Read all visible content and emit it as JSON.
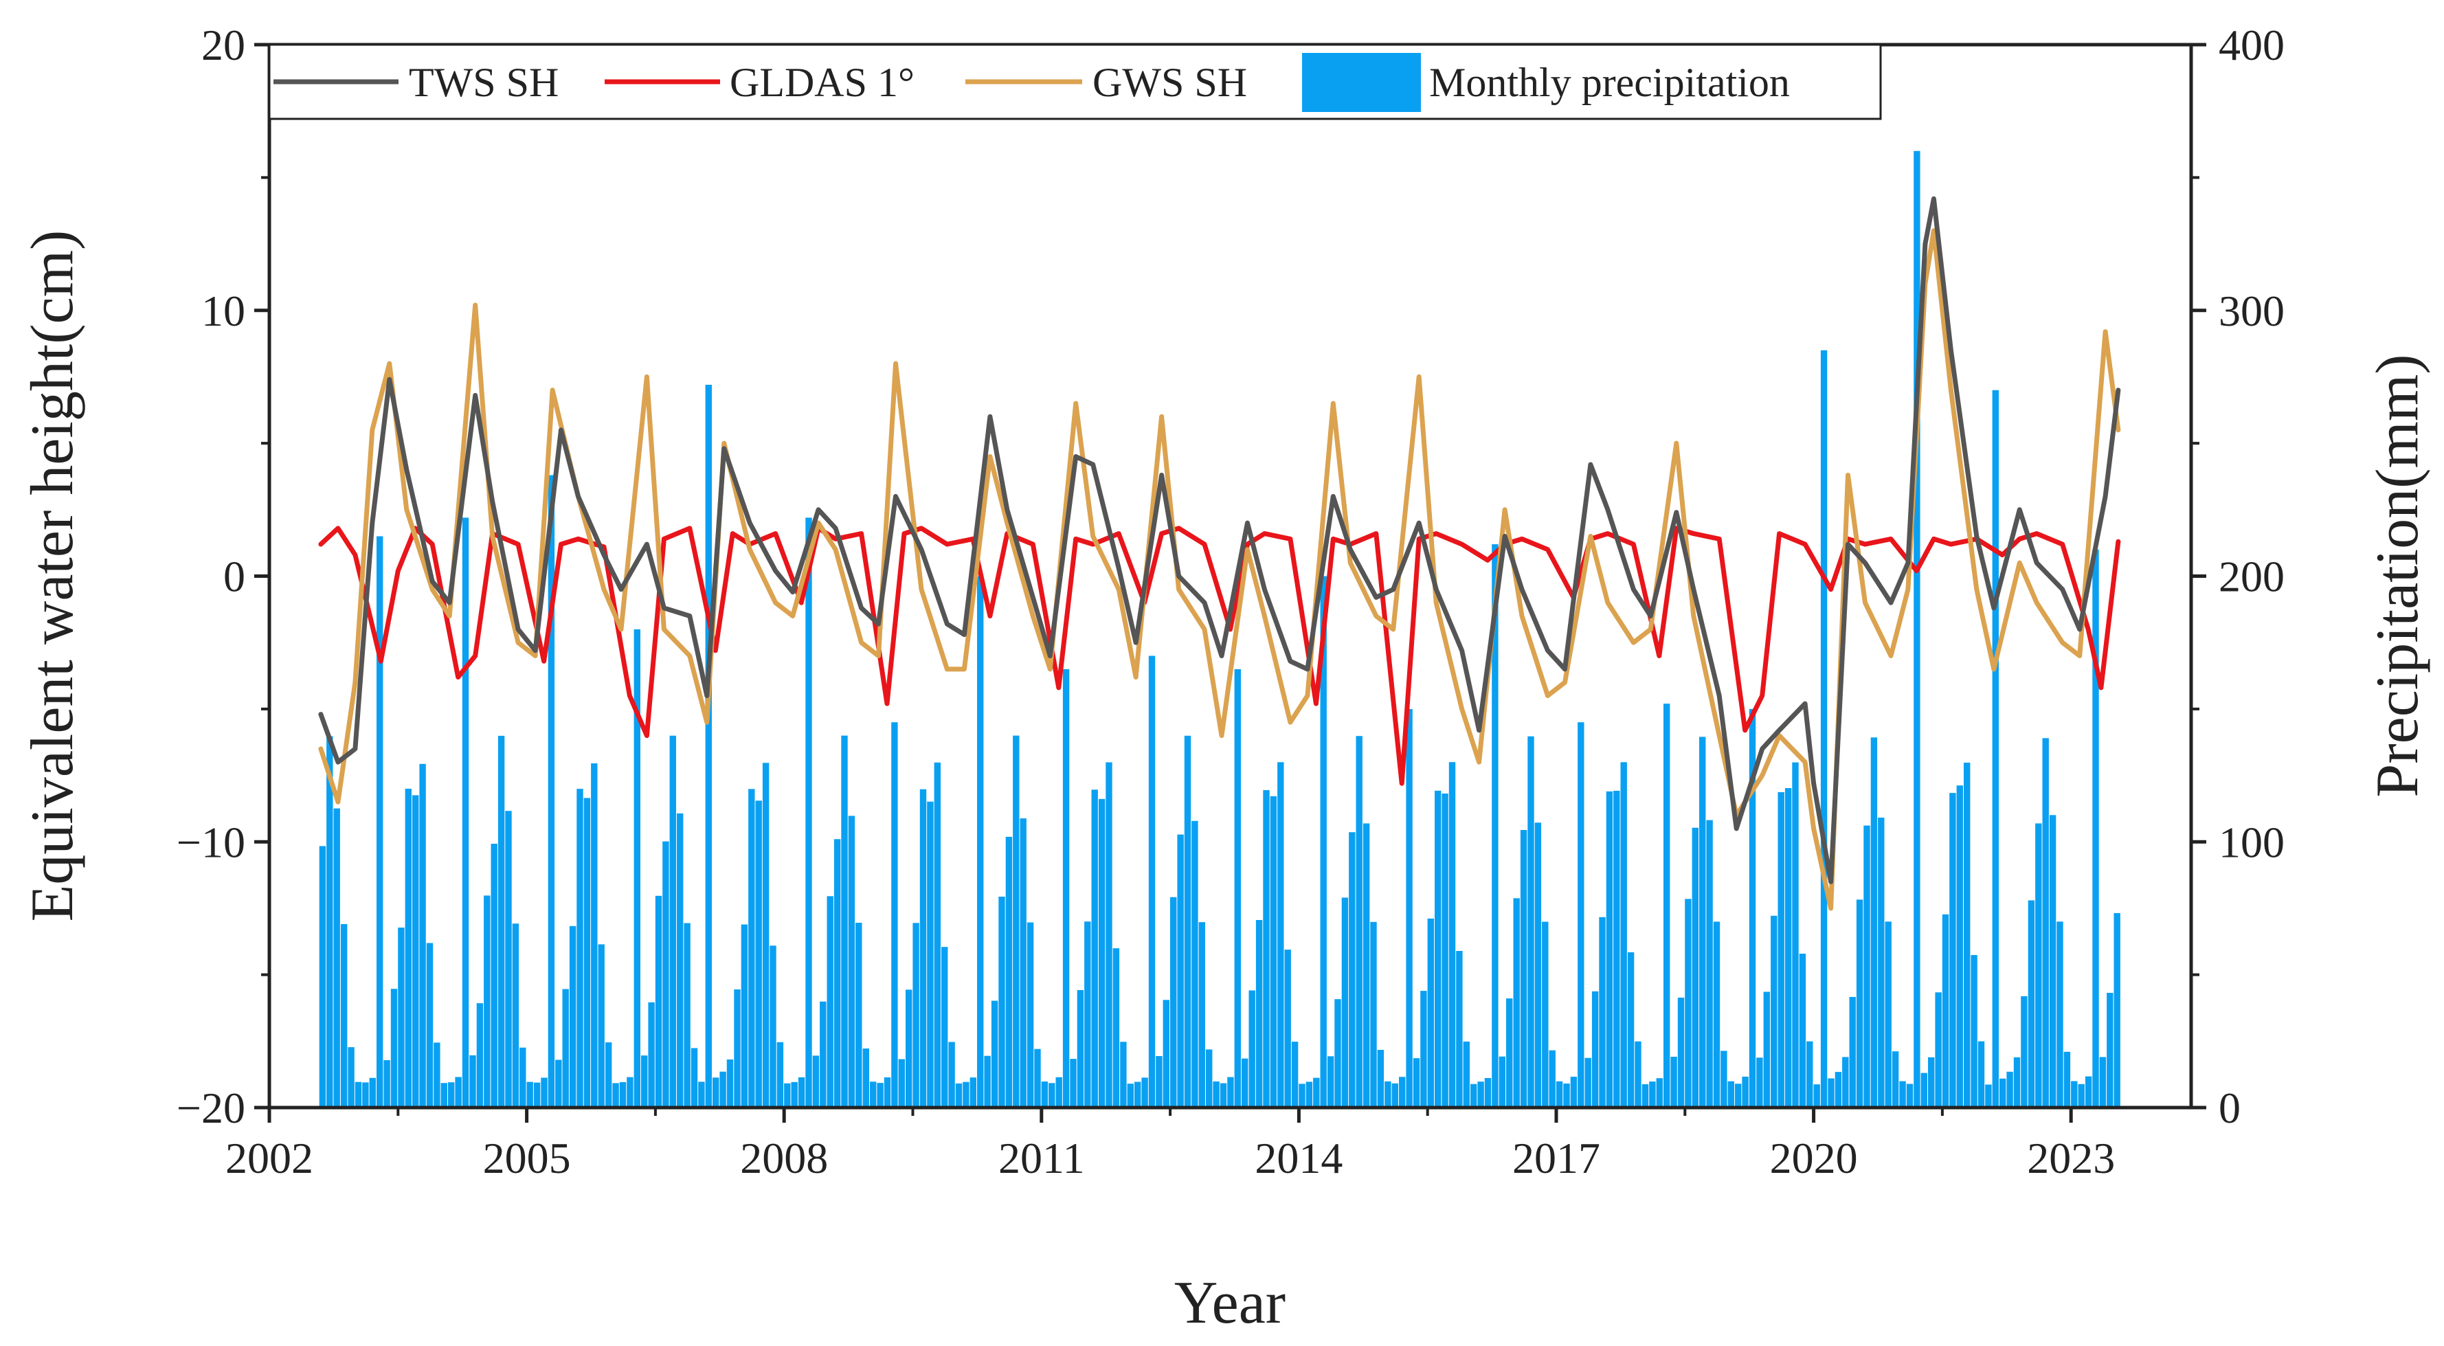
{
  "chart_data": {
    "type": "line+bar",
    "title": "",
    "xlabel": "Year",
    "ylabel_left": "Equivalent water height(cm)",
    "ylabel_right": "Precipitation(mm)",
    "xlim": [
      2002,
      2024.4
    ],
    "ylim_left": [
      -20,
      20
    ],
    "ylim_right": [
      0,
      400
    ],
    "x_ticks": [
      2002,
      2005,
      2008,
      2011,
      2014,
      2017,
      2020,
      2023
    ],
    "x_tick_labels": [
      "2002",
      "2005",
      "2008",
      "2011",
      "2014",
      "2017",
      "2020",
      "2023"
    ],
    "y_left_ticks": [
      20,
      10,
      0,
      -10,
      -20
    ],
    "y_left_tick_labels": [
      "20",
      "10",
      "0",
      "−10",
      "−20"
    ],
    "y_right_ticks": [
      400,
      300,
      200,
      100,
      0
    ],
    "y_right_tick_labels": [
      "400",
      "300",
      "200",
      "100",
      "0"
    ],
    "grid": false,
    "legend_position": "top",
    "legend": [
      {
        "id": "tws",
        "label": "TWS SH",
        "color": "#555555",
        "kind": "line"
      },
      {
        "id": "gldas",
        "label": "GLDAS 1°",
        "color": "#e8151b",
        "kind": "line"
      },
      {
        "id": "gws",
        "label": "GWS SH",
        "color": "#dba24f",
        "kind": "line"
      },
      {
        "id": "precip",
        "label": "Monthly precipitation",
        "color": "#0aa0f2",
        "kind": "bar"
      }
    ],
    "precip_spec": {
      "start_year": 2002.62,
      "end_year": 2023.55,
      "months_per_year": 12,
      "annual_base_mm": [
        10,
        10,
        12,
        14,
        20,
        45,
        80,
        120,
        140,
        130,
        70,
        25
      ],
      "annual_peaks_mm": [
        2003.3,
        215,
        2004.3,
        222,
        2005.3,
        238,
        2006.3,
        180,
        2007.1,
        272,
        2008.3,
        222,
        2009.3,
        145,
        2010.3,
        200,
        2011.3,
        165,
        2012.3,
        170,
        2013.3,
        165,
        2014.3,
        200,
        2015.3,
        150,
        2016.3,
        212,
        2017.3,
        145,
        2018.3,
        152,
        2019.3,
        150,
        2020.1,
        285,
        2021.2,
        360,
        2022.1,
        270,
        2023.3,
        210
      ]
    },
    "series": [
      {
        "id": "gldas",
        "name": "GLDAS 1°",
        "color": "#e8151b",
        "x": [
          2002.6,
          2002.8,
          2003.0,
          2003.3,
          2003.5,
          2003.7,
          2003.9,
          2004.2,
          2004.4,
          2004.6,
          2004.9,
          2005.2,
          2005.4,
          2005.6,
          2005.9,
          2006.2,
          2006.4,
          2006.6,
          2006.9,
          2007.2,
          2007.4,
          2007.6,
          2007.9,
          2008.2,
          2008.4,
          2008.6,
          2008.9,
          2009.2,
          2009.4,
          2009.6,
          2009.9,
          2010.2,
          2010.4,
          2010.6,
          2010.9,
          2011.2,
          2011.4,
          2011.6,
          2011.9,
          2012.2,
          2012.4,
          2012.6,
          2012.9,
          2013.2,
          2013.4,
          2013.6,
          2013.9,
          2014.2,
          2014.4,
          2014.6,
          2014.9,
          2015.2,
          2015.4,
          2015.6,
          2015.9,
          2016.2,
          2016.4,
          2016.6,
          2016.9,
          2017.2,
          2017.4,
          2017.6,
          2017.9,
          2018.2,
          2018.4,
          2018.6,
          2018.9,
          2019.2,
          2019.4,
          2019.6,
          2019.9,
          2020.2,
          2020.4,
          2020.6,
          2020.9,
          2021.2,
          2021.4,
          2021.6,
          2021.9,
          2022.2,
          2022.4,
          2022.6,
          2022.9,
          2023.2,
          2023.35,
          2023.55
        ],
        "y": [
          1.2,
          1.8,
          0.8,
          -3.2,
          0.2,
          1.8,
          1.2,
          -3.8,
          -3.0,
          1.6,
          1.2,
          -3.2,
          1.2,
          1.4,
          1.1,
          -4.5,
          -6.0,
          1.4,
          1.8,
          -2.8,
          1.6,
          1.2,
          1.6,
          -1.0,
          1.8,
          1.4,
          1.6,
          -4.8,
          1.6,
          1.8,
          1.2,
          1.4,
          -1.5,
          1.6,
          1.2,
          -4.2,
          1.4,
          1.2,
          1.6,
          -1.0,
          1.6,
          1.8,
          1.2,
          -2.0,
          1.2,
          1.6,
          1.4,
          -4.8,
          1.4,
          1.2,
          1.6,
          -7.8,
          1.4,
          1.6,
          1.2,
          0.6,
          1.2,
          1.4,
          1.0,
          -0.8,
          1.4,
          1.6,
          1.2,
          -3.0,
          1.8,
          1.6,
          1.4,
          -5.8,
          -4.5,
          1.6,
          1.2,
          -0.5,
          1.4,
          1.2,
          1.4,
          0.2,
          1.4,
          1.2,
          1.4,
          0.8,
          1.4,
          1.6,
          1.2,
          -2.0,
          -4.2,
          1.3
        ]
      },
      {
        "id": "tws",
        "name": "TWS SH",
        "color": "#555555",
        "x": [
          2002.6,
          2002.8,
          2003.0,
          2003.2,
          2003.4,
          2003.6,
          2003.9,
          2004.1,
          2004.4,
          2004.6,
          2004.9,
          2005.1,
          2005.4,
          2005.6,
          2005.9,
          2006.1,
          2006.4,
          2006.6,
          2006.9,
          2007.1,
          2007.3,
          2007.6,
          2007.9,
          2008.1,
          2008.4,
          2008.6,
          2008.9,
          2009.1,
          2009.3,
          2009.6,
          2009.9,
          2010.1,
          2010.4,
          2010.6,
          2010.9,
          2011.1,
          2011.4,
          2011.6,
          2011.9,
          2012.1,
          2012.4,
          2012.6,
          2012.9,
          2013.1,
          2013.4,
          2013.6,
          2013.9,
          2014.1,
          2014.4,
          2014.6,
          2014.9,
          2015.1,
          2015.4,
          2015.6,
          2015.9,
          2016.1,
          2016.4,
          2016.6,
          2016.9,
          2017.1,
          2017.4,
          2017.6,
          2017.9,
          2018.1,
          2018.4,
          2018.6,
          2018.9,
          2019.1,
          2019.4,
          2019.6,
          2019.9,
          2020.0,
          2020.2,
          2020.4,
          2020.6,
          2020.9,
          2021.1,
          2021.3,
          2021.4,
          2021.6,
          2021.9,
          2022.1,
          2022.4,
          2022.6,
          2022.9,
          2023.1,
          2023.4,
          2023.55
        ],
        "y": [
          -5.2,
          -7.0,
          -6.5,
          2.0,
          7.4,
          4.0,
          -0.2,
          -1.0,
          6.8,
          2.8,
          -2.0,
          -2.8,
          5.5,
          3.0,
          0.8,
          -0.5,
          1.2,
          -1.2,
          -1.5,
          -4.5,
          4.8,
          2.0,
          0.2,
          -0.6,
          2.5,
          1.8,
          -1.2,
          -1.8,
          3.0,
          1.0,
          -1.8,
          -2.2,
          6.0,
          2.5,
          -0.8,
          -3.0,
          4.5,
          4.2,
          0.3,
          -2.5,
          3.8,
          0.0,
          -1.0,
          -3.0,
          2.0,
          -0.5,
          -3.2,
          -3.5,
          3.0,
          1.0,
          -0.8,
          -0.5,
          2.0,
          -0.5,
          -2.8,
          -5.8,
          1.5,
          -0.5,
          -2.8,
          -3.5,
          4.2,
          2.5,
          -0.5,
          -1.5,
          2.4,
          -0.5,
          -4.5,
          -9.5,
          -6.5,
          -5.8,
          -4.8,
          -7.8,
          -11.5,
          1.2,
          0.5,
          -1.0,
          0.5,
          12.5,
          14.2,
          8.5,
          1.5,
          -1.2,
          2.5,
          0.5,
          -0.5,
          -2.0,
          3.0,
          7.0
        ]
      },
      {
        "id": "gws",
        "name": "GWS SH",
        "color": "#dba24f",
        "x": [
          2002.6,
          2002.8,
          2003.0,
          2003.2,
          2003.4,
          2003.6,
          2003.9,
          2004.1,
          2004.4,
          2004.6,
          2004.9,
          2005.1,
          2005.3,
          2005.6,
          2005.9,
          2006.1,
          2006.4,
          2006.6,
          2006.9,
          2007.1,
          2007.3,
          2007.6,
          2007.9,
          2008.1,
          2008.4,
          2008.6,
          2008.9,
          2009.1,
          2009.3,
          2009.6,
          2009.9,
          2010.1,
          2010.4,
          2010.6,
          2010.9,
          2011.1,
          2011.4,
          2011.6,
          2011.9,
          2012.1,
          2012.4,
          2012.6,
          2012.9,
          2013.1,
          2013.4,
          2013.6,
          2013.9,
          2014.1,
          2014.4,
          2014.6,
          2014.9,
          2015.1,
          2015.4,
          2015.6,
          2015.9,
          2016.1,
          2016.4,
          2016.6,
          2016.9,
          2017.1,
          2017.4,
          2017.6,
          2017.9,
          2018.1,
          2018.4,
          2018.6,
          2018.9,
          2019.1,
          2019.4,
          2019.6,
          2019.9,
          2020.0,
          2020.2,
          2020.4,
          2020.6,
          2020.9,
          2021.1,
          2021.3,
          2021.4,
          2021.6,
          2021.9,
          2022.1,
          2022.4,
          2022.6,
          2022.9,
          2023.1,
          2023.4,
          2023.55
        ],
        "y": [
          -6.5,
          -8.5,
          -4.0,
          5.5,
          8.0,
          2.5,
          -0.5,
          -1.5,
          10.2,
          1.5,
          -2.5,
          -3.0,
          7.0,
          3.0,
          -0.5,
          -2.0,
          7.5,
          -2.0,
          -3.0,
          -5.5,
          5.0,
          1.0,
          -1.0,
          -1.5,
          2.0,
          1.0,
          -2.5,
          -3.0,
          8.0,
          -0.5,
          -3.5,
          -3.5,
          4.5,
          2.0,
          -1.5,
          -3.5,
          6.5,
          1.5,
          -0.5,
          -3.8,
          6.0,
          -0.5,
          -2.0,
          -6.0,
          1.0,
          -1.5,
          -5.5,
          -4.5,
          6.5,
          0.5,
          -1.5,
          -2.0,
          7.5,
          -1.0,
          -5.0,
          -7.0,
          2.5,
          -1.5,
          -4.5,
          -4.0,
          1.5,
          -1.0,
          -2.5,
          -2.0,
          5.0,
          -1.5,
          -6.0,
          -9.0,
          -7.5,
          -6.0,
          -7.0,
          -9.5,
          -12.5,
          3.8,
          -1.0,
          -3.0,
          -0.5,
          11.0,
          13.0,
          7.0,
          -0.5,
          -3.5,
          0.5,
          -1.0,
          -2.5,
          -3.0,
          9.2,
          5.5
        ]
      }
    ]
  }
}
